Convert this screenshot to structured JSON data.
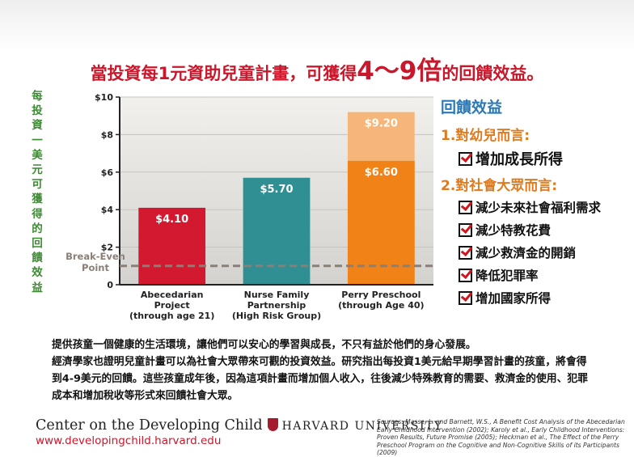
{
  "headline": {
    "part1": "當投資每1元資助兒童計畫，可獲得",
    "highlight": "4～9倍",
    "part2": "的回饋效益。"
  },
  "vertical_label": "每投資一美元可獲得的回饋效益",
  "chart_data": {
    "type": "bar",
    "categories": [
      [
        "Abecedarian",
        "Project",
        "(through age 21)"
      ],
      [
        "Nurse Family",
        "Partnership",
        "(High Risk Group)"
      ],
      [
        "Perry Preschool",
        "(through Age 40)"
      ]
    ],
    "values": [
      4.1,
      5.7,
      9.2
    ],
    "value_labels": [
      "$4.10",
      "$5.70",
      "$9.20"
    ],
    "segments": [
      {
        "category": 2,
        "value": 6.6,
        "label": "$6.60"
      }
    ],
    "ylim": [
      0,
      10
    ],
    "yticks": [
      {
        "value": 0,
        "label": "0"
      },
      {
        "value": 2,
        "label": "$2"
      },
      {
        "value": 4,
        "label": "$4"
      },
      {
        "value": 6,
        "label": "$6"
      },
      {
        "value": 8,
        "label": "$8"
      },
      {
        "value": 10,
        "label": "$10"
      }
    ],
    "grid": true,
    "reference_line": {
      "value": 1,
      "label": [
        "Break-Even",
        "Point"
      ]
    },
    "colors": {
      "bar0": "#d2192f",
      "bar1": "#2f8f93",
      "bar2_lower": "#f08218",
      "bar2_upper": "#f6b67a",
      "breakeven": "#8a7f76",
      "plot_bg_top": "#f1f0ed",
      "plot_bg_bottom": "#d4d2ce"
    }
  },
  "benefits": {
    "title": "回饋效益",
    "sections": [
      {
        "heading": "1.對幼兒而言:",
        "items": [
          "增加成長所得"
        ]
      },
      {
        "heading": "2.對社會大眾而言:",
        "items": [
          "減少未來社會福利需求",
          "減少特教花費",
          "減少救濟金的開銷",
          "降低犯罪率",
          "增加國家所得"
        ]
      }
    ]
  },
  "body": {
    "paragraph1": "提供孩童一個健康的生活環境，讓他們可以安心的學習與成長，不只有益於他們的身心發展。",
    "paragraph2": "經濟學家也證明兒童計畫可以為社會大眾帶來可觀的投資效益。研究指出每投資1美元給早期學習計畫的孩童，將會得到4-9美元的回饋。這些孩童成年後，因為這項計畫而增加個人收入，往後減少特殊教育的需要、救濟金的使用、犯罪成本和增加稅收等形式來回饋社會大眾。"
  },
  "footer": {
    "org": "Center on the Developing Child",
    "university": "HARVARD UNIVERSITY",
    "url": "www.developingchild.harvard.edu",
    "sources": "Sources: Masse, L. and Barnett, W.S., A Benefit Cost Analysis of the Abecedarian Early Childhood Intervention (2002); Karoly et al., Early Childhood Interventions: Proven Results, Future Promise (2005); Heckman et al., The Effect of the Perry Preschool Program on the Cognitive and Non-Cognitive Skills of its Participants (2009)"
  }
}
